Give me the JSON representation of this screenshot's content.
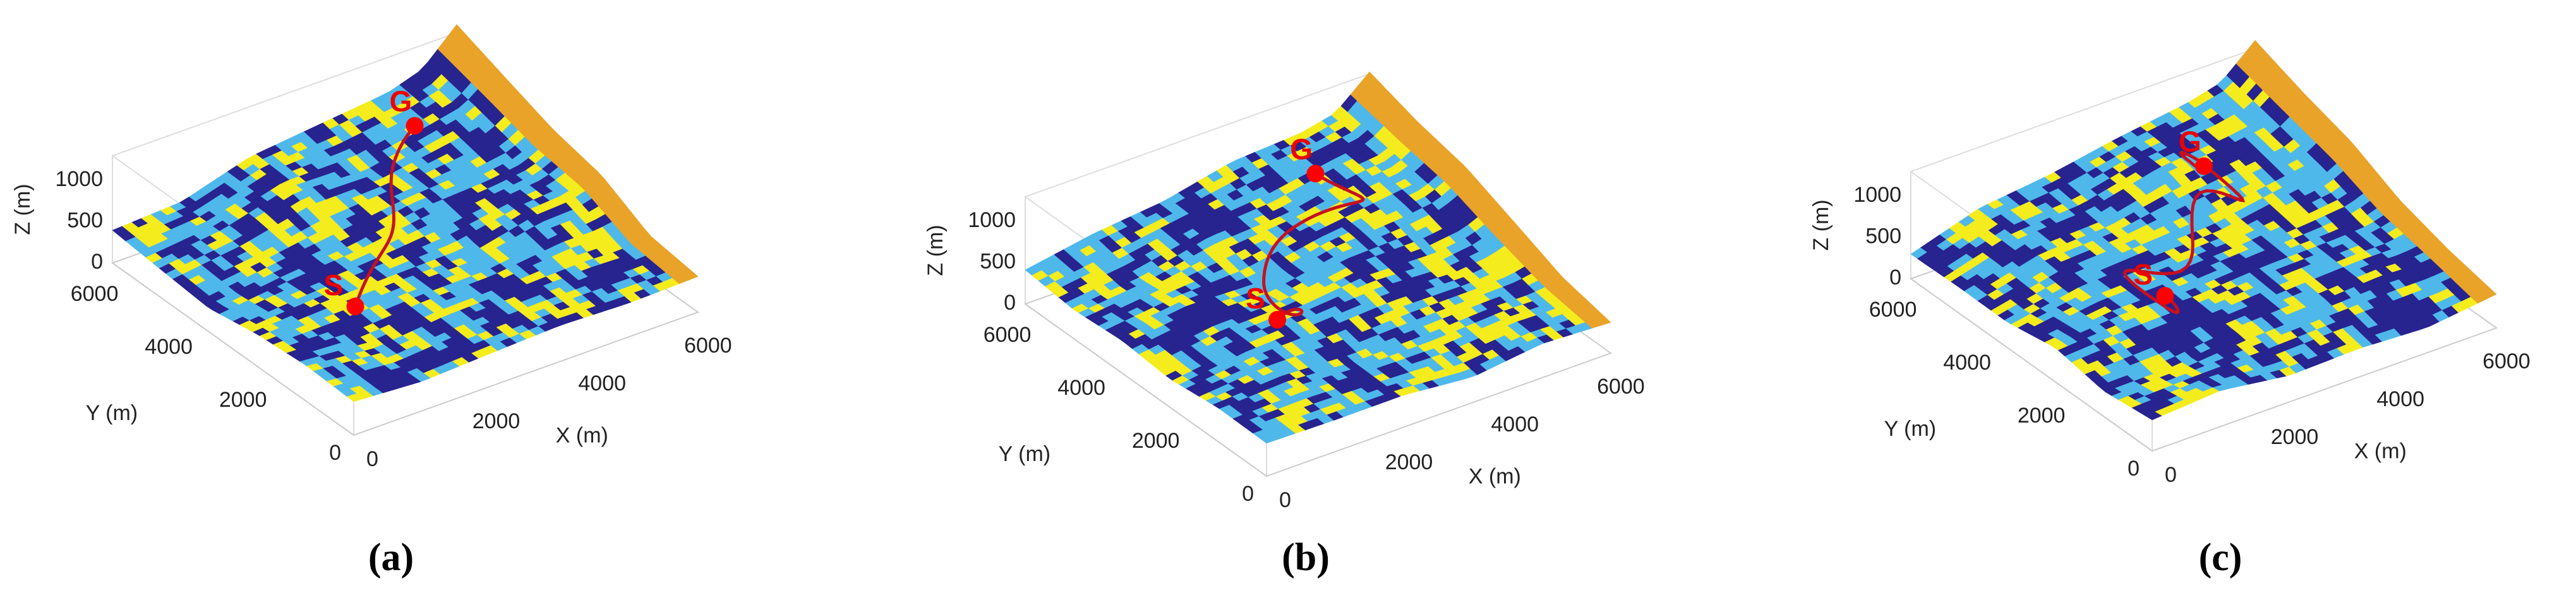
{
  "panels": [
    {
      "caption": "(a)",
      "x_axis_label": "X (m)",
      "y_axis_label": "Y (m)",
      "z_axis_label": "Z (m)",
      "xlim": [
        0,
        6500
      ],
      "ylim": [
        0,
        6500
      ],
      "zlim": [
        0,
        1300
      ],
      "x_ticks": [
        0,
        2000,
        4000,
        6000
      ],
      "y_ticks": [
        0,
        2000,
        4000,
        6000
      ],
      "z_ticks": [
        0,
        500,
        1000
      ],
      "start_label": "S",
      "goal_label": "G"
    },
    {
      "caption": "(b)",
      "x_axis_label": "X (m)",
      "y_axis_label": "Y (m)",
      "z_axis_label": "Z (m)",
      "xlim": [
        0,
        6500
      ],
      "ylim": [
        0,
        6500
      ],
      "zlim": [
        0,
        1300
      ],
      "x_ticks": [
        0,
        2000,
        4000,
        6000
      ],
      "y_ticks": [
        0,
        2000,
        4000,
        6000
      ],
      "z_ticks": [
        0,
        500,
        1000
      ],
      "start_label": "S",
      "goal_label": "G"
    },
    {
      "caption": "(c)",
      "x_axis_label": "X (m)",
      "y_axis_label": "Y (m)",
      "z_axis_label": "Z (m)",
      "xlim": [
        0,
        6500
      ],
      "ylim": [
        0,
        6500
      ],
      "zlim": [
        0,
        1300
      ],
      "x_ticks": [
        0,
        2000,
        4000,
        6000
      ],
      "y_ticks": [
        0,
        2000,
        4000,
        6000
      ],
      "z_ticks": [
        0,
        500,
        1000
      ],
      "start_label": "S",
      "goal_label": "G"
    }
  ]
}
